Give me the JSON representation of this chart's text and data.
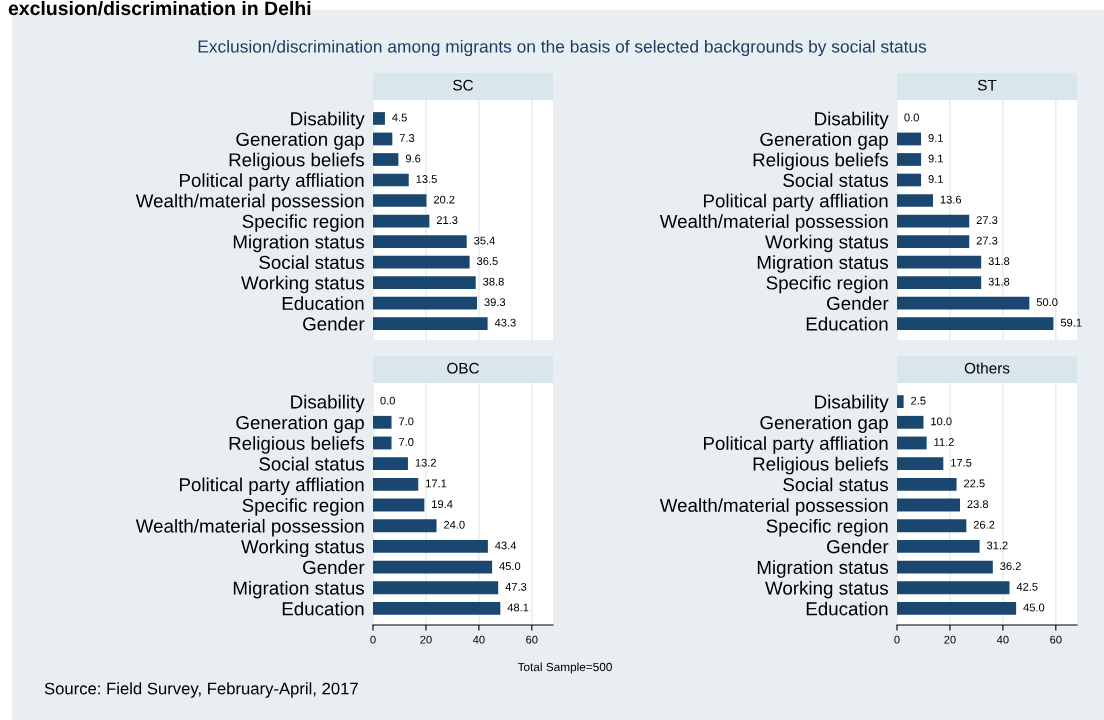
{
  "chart_data": [
    {
      "type": "bar",
      "orientation": "horizontal",
      "title": "SC",
      "categories": [
        "Disability",
        "Generation gap",
        "Religious beliefs",
        "Political party affliation",
        "Wealth/material possession",
        "Specific region",
        "Migration status",
        "Social status",
        "Working status",
        "Education",
        "Gender"
      ],
      "values": [
        4.5,
        7.3,
        9.6,
        13.5,
        20.2,
        21.3,
        35.4,
        36.5,
        38.8,
        39.3,
        43.3
      ],
      "value_labels": [
        "4.5",
        "7.3",
        "9.6",
        "13.5",
        "20.2",
        "21.3",
        "35.4",
        "36.5",
        "38.8",
        "39.3",
        "43.3"
      ],
      "color": "#1a476f",
      "xlim": [
        0,
        68
      ],
      "xticks": [
        0,
        20,
        40,
        60
      ],
      "grid": "x",
      "tick_labels": "y",
      "annotations": [
        "exclusion/discrimination in Delhi",
        "Exclusion/discrimination among migrants on the basis of selected backgrounds by social status",
        "Total Sample=500",
        "Source: Field Survey, February-April, 2017"
      ]
    },
    {
      "type": "bar",
      "orientation": "horizontal",
      "title": "ST",
      "categories": [
        "Disability",
        "Generation gap",
        "Religious beliefs",
        "Social status",
        "Political party affliation",
        "Wealth/material possession",
        "Working status",
        "Migration status",
        "Specific region",
        "Gender",
        "Education"
      ],
      "values": [
        0,
        9.1,
        9.1,
        9.1,
        13.6,
        27.3,
        27.3,
        31.8,
        31.8,
        50,
        59.1
      ],
      "value_labels": [
        "0.0",
        "9.1",
        "9.1",
        "9.1",
        "13.6",
        "27.3",
        "27.3",
        "31.8",
        "31.8",
        "50.0",
        "59.1"
      ],
      "color": "#1a476f",
      "xlim": [
        0,
        68
      ],
      "xticks": [
        0,
        20,
        40,
        60
      ],
      "grid": "x",
      "tick_labels": "y"
    },
    {
      "type": "bar",
      "orientation": "horizontal",
      "title": "OBC",
      "categories": [
        "Disability",
        "Generation gap",
        "Religious beliefs",
        "Social status",
        "Political party affliation",
        "Specific region",
        "Wealth/material possession",
        "Working status",
        "Gender",
        "Migration status",
        "Education"
      ],
      "values": [
        0,
        7,
        7,
        13.2,
        17.1,
        19.4,
        24,
        43.4,
        45,
        47.3,
        48.1
      ],
      "value_labels": [
        "0.0",
        "7.0",
        "7.0",
        "13.2",
        "17.1",
        "19.4",
        "24.0",
        "43.4",
        "45.0",
        "47.3",
        "48.1"
      ],
      "color": "#1a476f",
      "xlim": [
        0,
        68
      ],
      "xticks": [
        0,
        20,
        40,
        60
      ],
      "grid": "x"
    },
    {
      "type": "bar",
      "orientation": "horizontal",
      "title": "Others",
      "categories": [
        "Disability",
        "Generation gap",
        "Political party affliation",
        "Religious beliefs",
        "Social status",
        "Wealth/material possession",
        "Specific region",
        "Gender",
        "Migration status",
        "Working status",
        "Education"
      ],
      "values": [
        2.5,
        10,
        11.2,
        17.5,
        22.5,
        23.8,
        26.2,
        31.2,
        36.2,
        42.5,
        45
      ],
      "value_labels": [
        "2.5",
        "10.0",
        "11.2",
        "17.5",
        "22.5",
        "23.8",
        "26.2",
        "31.2",
        "36.2",
        "42.5",
        "45.0"
      ],
      "color": "#1a476f",
      "xlim": [
        0,
        68
      ],
      "xticks": [
        0,
        20,
        40,
        60
      ],
      "grid": "x"
    }
  ]
}
